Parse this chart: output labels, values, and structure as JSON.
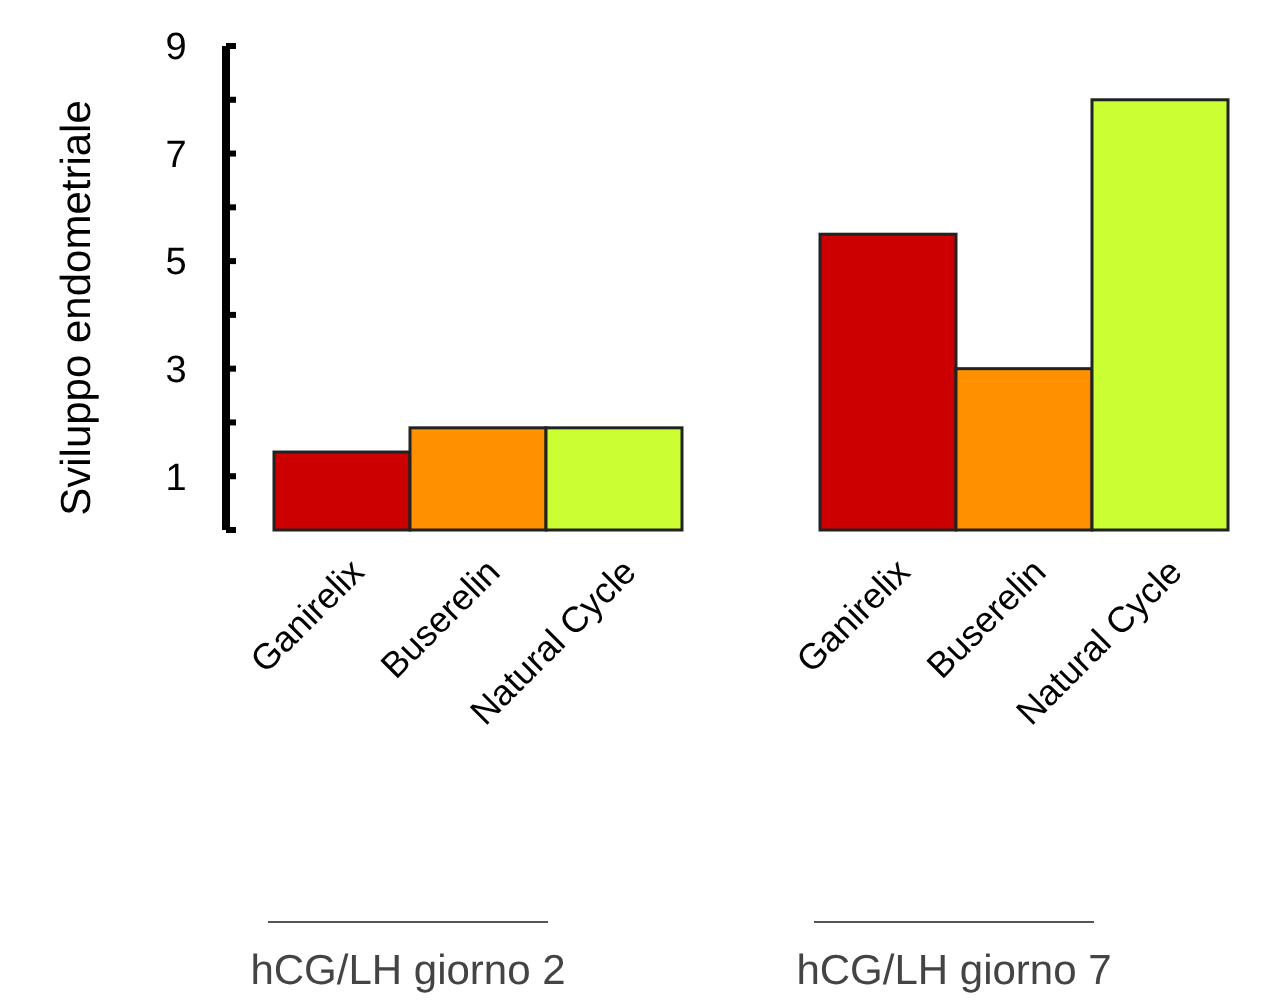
{
  "chart_data": {
    "type": "bar",
    "ylabel": "Sviluppo endometriale",
    "categories": [
      "Ganirelix",
      "Buserelin",
      "Natural Cycle",
      "Ganirelix",
      "Buserelin",
      "Natural Cycle"
    ],
    "values": [
      1.45,
      1.9,
      1.9,
      5.5,
      3.0,
      8.0
    ],
    "colors": [
      "#cc0000",
      "#ff9000",
      "#ccff33",
      "#cc0000",
      "#ff9000",
      "#ccff33"
    ],
    "ylim": [
      0,
      9
    ],
    "yticks": [
      {
        "value": 0,
        "label": null
      },
      1,
      {
        "value": 2,
        "label": null
      },
      3,
      {
        "value": 4,
        "label": null
      },
      5,
      {
        "value": 6,
        "label": null
      },
      7,
      {
        "value": 8,
        "label": null
      },
      9
    ],
    "annotations": [
      "hCG/LH giorno 2",
      "hCG/LH giorno 7"
    ]
  }
}
